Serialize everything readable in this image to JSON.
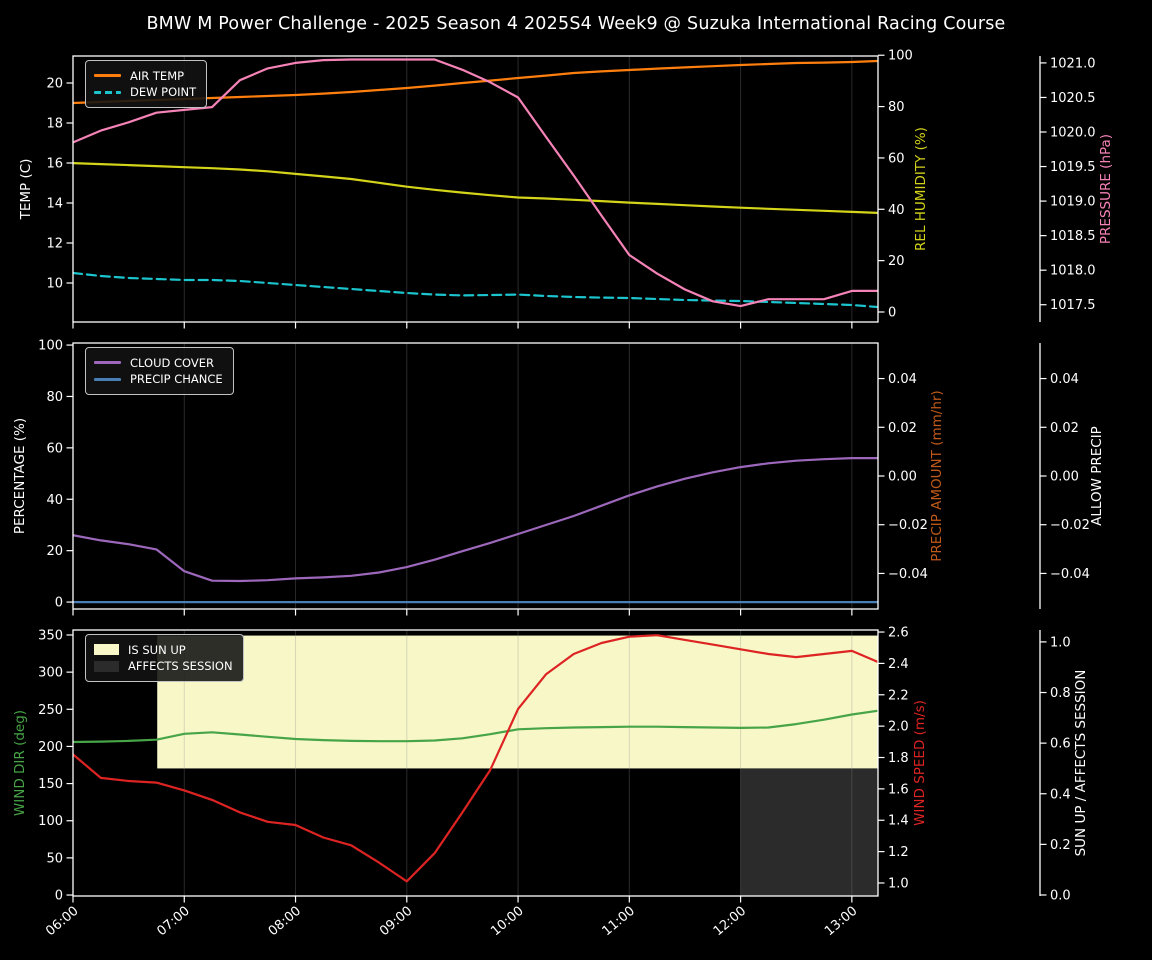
{
  "title": "BMW M Power Challenge - 2025 Season 4 2025S4 Week9 @ Suzuka International Racing Course",
  "figure": {
    "background": "#000000",
    "foreground": "#ffffff",
    "grid_color": "#8a8a8a"
  },
  "x_axis": {
    "range": [
      6.0,
      13.235
    ],
    "ticks": [
      [
        6,
        "06:00"
      ],
      [
        7,
        "07:00"
      ],
      [
        8,
        "08:00"
      ],
      [
        9,
        "09:00"
      ],
      [
        10,
        "10:00"
      ],
      [
        11,
        "11:00"
      ],
      [
        12,
        "12:00"
      ],
      [
        13,
        "13:00"
      ]
    ]
  },
  "panels": [
    {
      "name": "temperature",
      "left_axis": {
        "label": "TEMP (C)",
        "color": "#ffffff",
        "range": [
          8.05,
          21.35
        ],
        "ticks": [
          [
            10,
            "10"
          ],
          [
            12,
            "12"
          ],
          [
            14,
            "14"
          ],
          [
            16,
            "16"
          ],
          [
            18,
            "18"
          ],
          [
            20,
            "20"
          ]
        ]
      },
      "right_axes": [
        {
          "label": "REL HUMIDITY (%)",
          "color": "#d4d41a",
          "range": [
            -3.9,
            99.7
          ],
          "ticks": [
            [
              0,
              "0"
            ],
            [
              20,
              "20"
            ],
            [
              40,
              "40"
            ],
            [
              60,
              "60"
            ],
            [
              80,
              "80"
            ],
            [
              100,
              "100"
            ]
          ]
        },
        {
          "label": "PRESSURE (hPa)",
          "color": "#f583b7",
          "range": [
            1017.25,
            1021.1
          ],
          "ticks": [
            [
              1017.5,
              "1017.5"
            ],
            [
              1018.0,
              "1018.0"
            ],
            [
              1018.5,
              "1018.5"
            ],
            [
              1019.0,
              "1019.0"
            ],
            [
              1019.5,
              "1019.5"
            ],
            [
              1020.0,
              "1020.0"
            ],
            [
              1020.5,
              "1020.5"
            ],
            [
              1021.0,
              "1021.0"
            ]
          ]
        }
      ],
      "legend": [
        {
          "label": "AIR TEMP",
          "color": "#ff7f0e",
          "swatch": "line"
        },
        {
          "label": "DEW POINT",
          "color": "#1cc5ce",
          "swatch": "dashed-line"
        }
      ],
      "series": [
        {
          "key": "air_temp_c",
          "axis": "left",
          "color": "#ff7f0e"
        },
        {
          "key": "dew_point_c",
          "axis": "left",
          "color": "#1cc5ce",
          "dashed": true
        },
        {
          "key": "rel_humidity_pct",
          "axis": "right0",
          "color": "#d4d41a"
        },
        {
          "key": "pressure_hpa",
          "axis": "right1",
          "color": "#f583b7"
        }
      ]
    },
    {
      "name": "cloud-precip",
      "left_axis": {
        "label": "PERCENTAGE (%)",
        "color": "#ffffff",
        "range": [
          -2.7,
          100.8
        ],
        "ticks": [
          [
            0,
            "0"
          ],
          [
            20,
            "20"
          ],
          [
            40,
            "40"
          ],
          [
            60,
            "60"
          ],
          [
            80,
            "80"
          ],
          [
            100,
            "100"
          ]
        ]
      },
      "right_axes": [
        {
          "label": "PRECIP AMOUNT (mm/hr)",
          "color": "#c05a1a",
          "range": [
            -0.0546,
            0.0546
          ],
          "ticks": [
            [
              -0.04,
              "−0.04"
            ],
            [
              -0.02,
              "−0.02"
            ],
            [
              0,
              "0.00"
            ],
            [
              0.02,
              "0.02"
            ],
            [
              0.04,
              "0.04"
            ]
          ]
        },
        {
          "label": "ALLOW PRECIP",
          "color": "#ffffff",
          "range": [
            -0.0546,
            0.0546
          ],
          "ticks": [
            [
              -0.04,
              "−0.04"
            ],
            [
              -0.02,
              "−0.02"
            ],
            [
              0,
              "0.00"
            ],
            [
              0.02,
              "0.02"
            ],
            [
              0.04,
              "0.04"
            ]
          ]
        }
      ],
      "legend": [
        {
          "label": "CLOUD COVER",
          "color": "#9d68bb",
          "swatch": "line"
        },
        {
          "label": "PRECIP CHANCE",
          "color": "#4a7fb5",
          "swatch": "line"
        }
      ],
      "series": [
        {
          "key": "cloud_cover_pct",
          "axis": "left",
          "color": "#9d68bb"
        },
        {
          "key": "precip_chance_pct",
          "axis": "left",
          "color": "#4a7fb5"
        }
      ]
    },
    {
      "name": "wind-sun",
      "left_axis": {
        "label": "WIND DIR (deg)",
        "color": "#47a447",
        "range": [
          -1.3,
          356.7
        ],
        "ticks": [
          [
            0,
            "0"
          ],
          [
            50,
            "50"
          ],
          [
            100,
            "100"
          ],
          [
            150,
            "150"
          ],
          [
            200,
            "200"
          ],
          [
            250,
            "250"
          ],
          [
            300,
            "300"
          ],
          [
            350,
            "350"
          ]
        ]
      },
      "right_axes": [
        {
          "label": "WIND SPEED (m/s)",
          "color": "#dd2423",
          "range": [
            0.917,
            2.613
          ],
          "ticks": [
            [
              1.0,
              "1.0"
            ],
            [
              1.2,
              "1.2"
            ],
            [
              1.4,
              "1.4"
            ],
            [
              1.6,
              "1.6"
            ],
            [
              1.8,
              "1.8"
            ],
            [
              2.0,
              "2.0"
            ],
            [
              2.2,
              "2.2"
            ],
            [
              2.4,
              "2.4"
            ],
            [
              2.6,
              "2.6"
            ]
          ]
        },
        {
          "label": "SUN UP / AFFECTS SESSION",
          "color": "#ffffff",
          "range": [
            -0.004,
            1.047
          ],
          "ticks": [
            [
              0.0,
              "0.0"
            ],
            [
              0.2,
              "0.2"
            ],
            [
              0.4,
              "0.4"
            ],
            [
              0.6,
              "0.6"
            ],
            [
              0.8,
              "0.8"
            ],
            [
              1.0,
              "1.0"
            ]
          ]
        }
      ],
      "legend": [
        {
          "label": "IS SUN UP",
          "color": "#f7f7c8",
          "swatch": "patch"
        },
        {
          "label": "AFFECTS SESSION",
          "color": "#2b2b2b",
          "swatch": "patch"
        }
      ],
      "series": [
        {
          "key": "wind_dir_deg",
          "axis": "left",
          "color": "#47a447"
        },
        {
          "key": "wind_speed_ms",
          "axis": "right0",
          "color": "#dd2423"
        }
      ],
      "regions": [
        {
          "name": "sun-up-region",
          "axis": "right1",
          "x": [
            6.757,
            13.235
          ],
          "y": [
            0.5,
            1.025
          ],
          "color": "#f7f7c8"
        },
        {
          "name": "affects-session-region",
          "axis": "right1",
          "x": [
            12.0,
            13.235
          ],
          "y": [
            -0.004,
            0.5
          ],
          "color": "#2b2b2b"
        }
      ]
    }
  ],
  "chart_data": {
    "type": "line",
    "title": "BMW M Power Challenge - 2025 Season 4 2025S4 Week9 @ Suzuka International Racing Course",
    "x_hours": [
      6.0,
      6.25,
      6.5,
      6.75,
      7.0,
      7.25,
      7.5,
      7.75,
      8.0,
      8.25,
      8.5,
      8.75,
      9.0,
      9.25,
      9.5,
      9.75,
      10.0,
      10.25,
      10.5,
      10.75,
      11.0,
      11.25,
      11.5,
      11.75,
      12.0,
      12.25,
      12.5,
      12.75,
      13.0,
      13.23
    ],
    "series": {
      "air_temp_c": [
        19.0,
        19.05,
        19.1,
        19.15,
        19.2,
        19.25,
        19.3,
        19.35,
        19.4,
        19.47,
        19.55,
        19.65,
        19.75,
        19.87,
        20.0,
        20.12,
        20.25,
        20.37,
        20.5,
        20.58,
        20.65,
        20.72,
        20.78,
        20.84,
        20.9,
        20.95,
        21.0,
        21.02,
        21.05,
        21.1
      ],
      "dew_point_c": [
        10.5,
        10.35,
        10.25,
        10.2,
        10.15,
        10.15,
        10.1,
        10.0,
        9.9,
        9.8,
        9.7,
        9.6,
        9.5,
        9.42,
        9.38,
        9.4,
        9.42,
        9.35,
        9.3,
        9.27,
        9.25,
        9.2,
        9.15,
        9.12,
        9.1,
        9.05,
        9.0,
        8.95,
        8.9,
        8.8
      ],
      "rel_humidity_pct": [
        58.0,
        57.6,
        57.2,
        56.8,
        56.4,
        56.0,
        55.5,
        54.8,
        53.8,
        52.8,
        51.8,
        50.3,
        48.8,
        47.6,
        46.5,
        45.5,
        44.6,
        44.2,
        43.7,
        43.2,
        42.6,
        42.1,
        41.6,
        41.1,
        40.6,
        40.2,
        39.8,
        39.4,
        39.0,
        38.6
      ],
      "pressure_hpa": [
        1019.85,
        1020.02,
        1020.14,
        1020.28,
        1020.32,
        1020.36,
        1020.75,
        1020.92,
        1021.0,
        1021.04,
        1021.05,
        1021.05,
        1021.05,
        1021.05,
        1020.9,
        1020.72,
        1020.5,
        1019.93,
        1019.37,
        1018.79,
        1018.22,
        1017.95,
        1017.72,
        1017.55,
        1017.48,
        1017.58,
        1017.58,
        1017.58,
        1017.7,
        1017.7
      ],
      "cloud_cover_pct": [
        26,
        24,
        22.5,
        20.5,
        12.0,
        8.3,
        8.2,
        8.5,
        9.2,
        9.6,
        10.2,
        11.5,
        13.6,
        16.5,
        19.8,
        23.0,
        26.5,
        30.0,
        33.5,
        37.5,
        41.5,
        45.0,
        48.0,
        50.5,
        52.5,
        54.0,
        55.0,
        55.6,
        56.0,
        56.0
      ],
      "precip_chance_pct": [
        0,
        0,
        0,
        0,
        0,
        0,
        0,
        0,
        0,
        0,
        0,
        0,
        0,
        0,
        0,
        0,
        0,
        0,
        0,
        0,
        0,
        0,
        0,
        0,
        0,
        0,
        0,
        0,
        0,
        0
      ],
      "wind_dir_deg": [
        206,
        206.5,
        207.5,
        209,
        217,
        219,
        216,
        213,
        210,
        208.5,
        207.5,
        207,
        207,
        208,
        211,
        216.5,
        223,
        224.5,
        225.5,
        226,
        226.5,
        226.5,
        226,
        225.5,
        225,
        225.5,
        230,
        236,
        243,
        248
      ],
      "wind_speed_ms": [
        1.82,
        1.67,
        1.65,
        1.64,
        1.59,
        1.53,
        1.45,
        1.39,
        1.37,
        1.29,
        1.24,
        1.13,
        1.01,
        1.19,
        1.45,
        1.72,
        2.11,
        2.33,
        2.46,
        2.53,
        2.57,
        2.58,
        2.55,
        2.52,
        2.49,
        2.46,
        2.44,
        2.46,
        2.48,
        2.41
      ]
    },
    "annotations": {
      "sun_up_start": "06:45",
      "affects_session_start": "12:00"
    }
  }
}
